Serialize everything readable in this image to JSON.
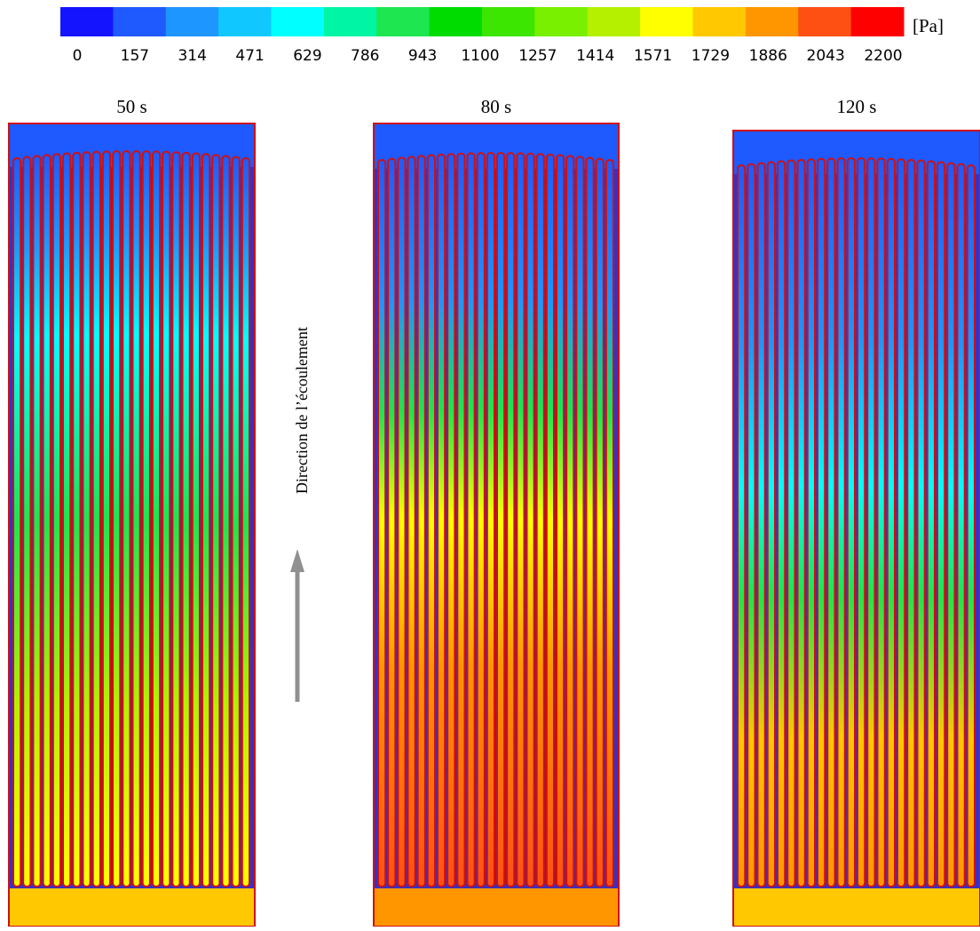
{
  "colorbar": {
    "unit": "[Pa]",
    "ticks": [
      0,
      157,
      314,
      471,
      629,
      786,
      943,
      1100,
      1257,
      1414,
      1571,
      1729,
      1886,
      2043,
      2200
    ],
    "colors": [
      "#1414ff",
      "#1e5aff",
      "#1e96ff",
      "#10c8ff",
      "#00ffff",
      "#00f5a5",
      "#1ee650",
      "#00dc00",
      "#3ce600",
      "#78f000",
      "#b4f000",
      "#ffff00",
      "#ffc800",
      "#ff9600",
      "#ff5014",
      "#ff0000"
    ]
  },
  "panels": [
    {
      "title": "50 s"
    },
    {
      "title": "80 s"
    },
    {
      "title": "120 s"
    }
  ],
  "annotation": "Direction de l’écoulement"
}
